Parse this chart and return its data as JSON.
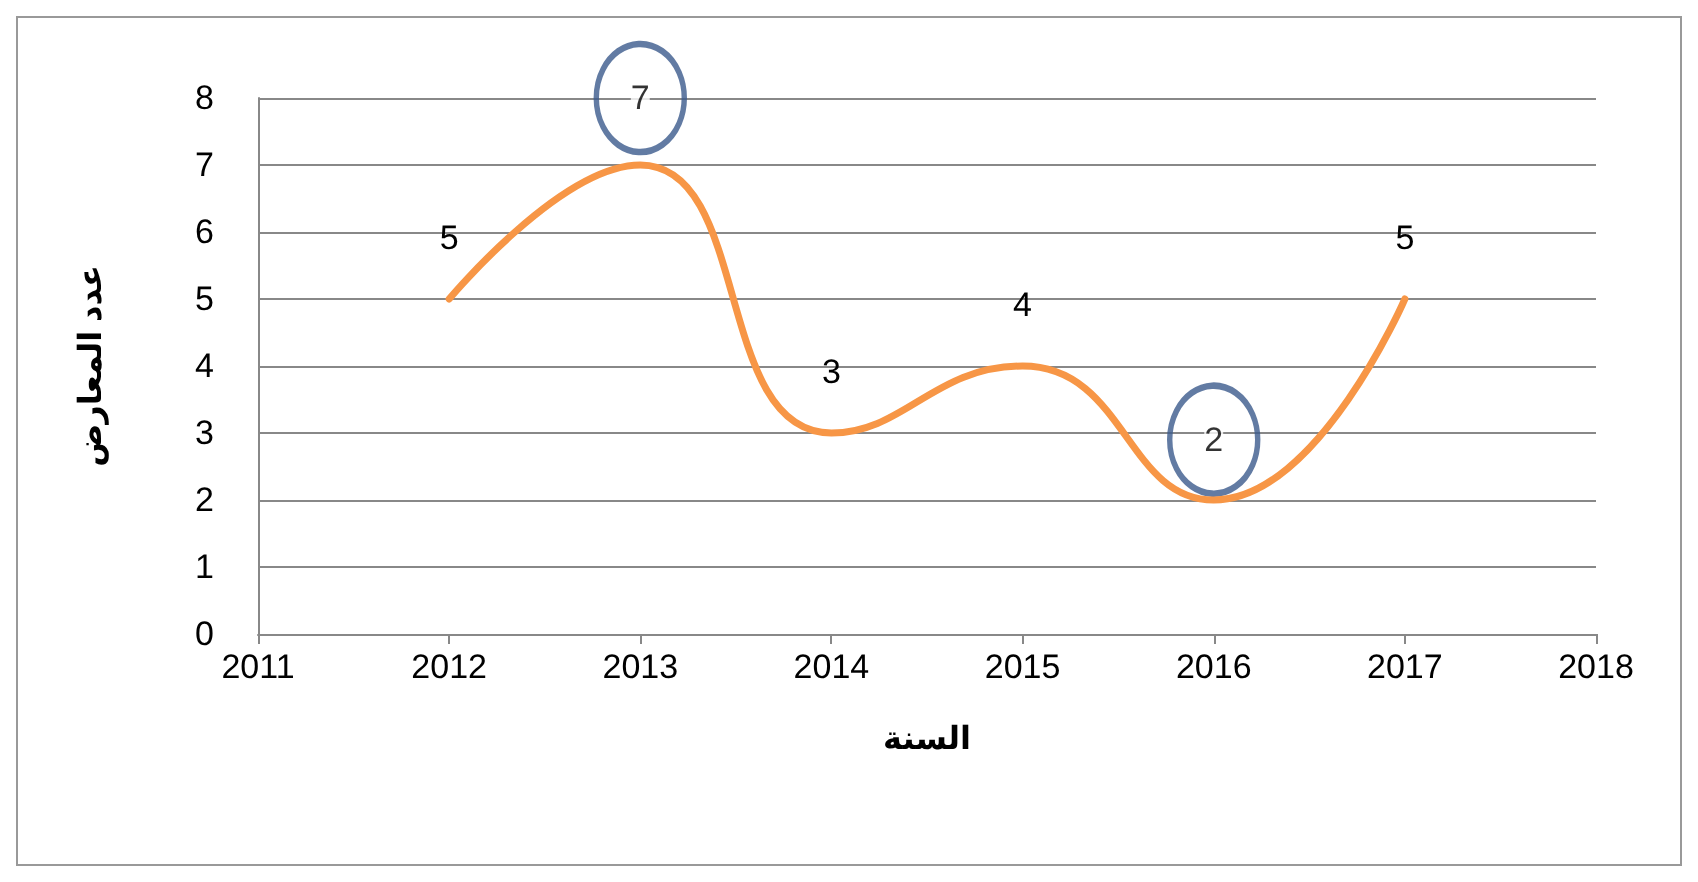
{
  "chart_data": {
    "type": "line",
    "xlabel": "السنة",
    "ylabel": "عدد المعارض",
    "x": [
      2012,
      2013,
      2014,
      2015,
      2016,
      2017
    ],
    "series": [
      {
        "color": "#f79646",
        "values": [
          5,
          7,
          3,
          4,
          2,
          5
        ]
      }
    ],
    "value_labels": [
      "5",
      null,
      "3",
      "4",
      null,
      "5"
    ],
    "annotations": [
      {
        "text": "7",
        "x": 2013,
        "y": 8
      },
      {
        "text": "2",
        "x": 2016,
        "y": 2.9
      }
    ],
    "xlim": [
      2011,
      2018
    ],
    "xticks": [
      2011,
      2012,
      2013,
      2014,
      2015,
      2016,
      2017,
      2018
    ],
    "ylim": [
      0,
      8
    ],
    "yticks": [
      0,
      1,
      2,
      3,
      4,
      5,
      6,
      7,
      8
    ],
    "grid": "y",
    "marker": "none",
    "line_style": "solid"
  }
}
